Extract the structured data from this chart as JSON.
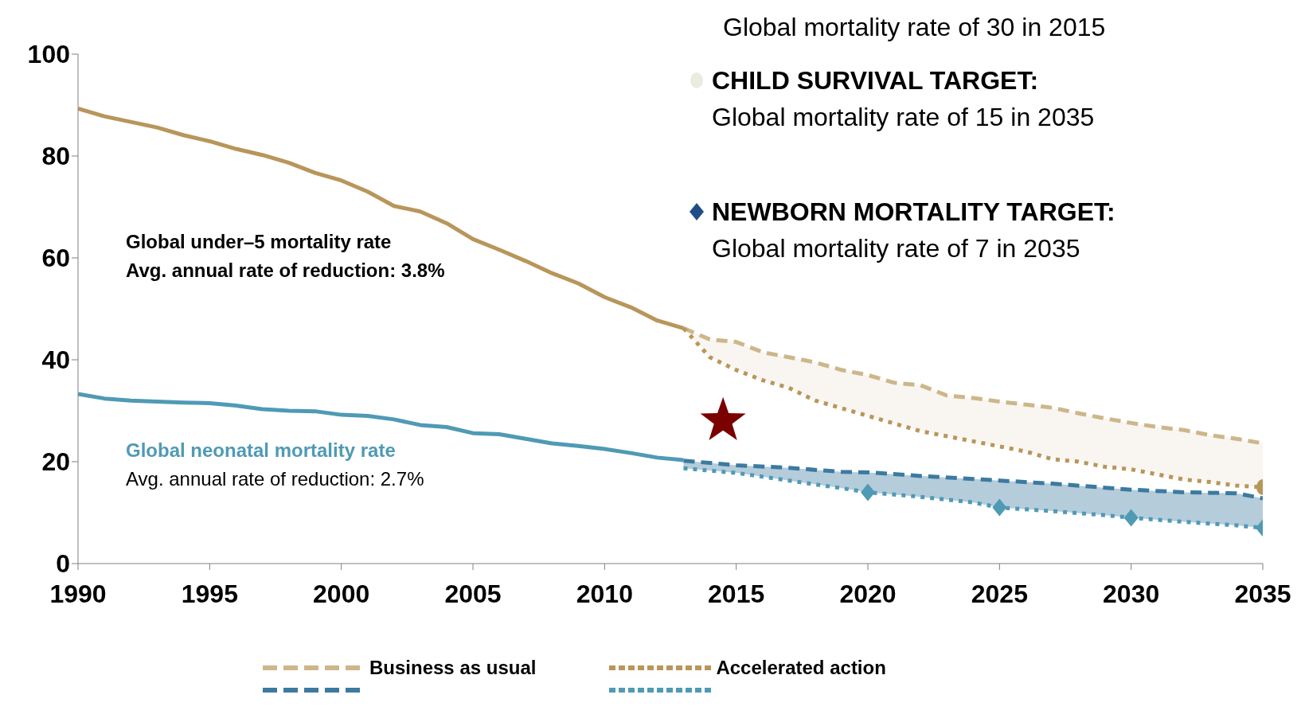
{
  "chart_data": {
    "type": "line",
    "xlim": [
      1990,
      2035
    ],
    "xticks": [
      1990,
      1995,
      2000,
      2005,
      2010,
      2015,
      2020,
      2025,
      2030,
      2035
    ],
    "ylim": [
      0,
      100
    ],
    "yticks": [
      0,
      20,
      40,
      60,
      80,
      100
    ],
    "grid": false,
    "legend": "bottom",
    "series": [
      {
        "name": "Global under–5 mortality rate",
        "color": "#b8965a",
        "line_style": "solid",
        "x": [
          1990,
          1991,
          1992,
          1993,
          1994,
          1995,
          1996,
          1997,
          1998,
          1999,
          2000,
          2001,
          2002,
          2003,
          2004,
          2005,
          2006,
          2007,
          2008,
          2009,
          2010,
          2011,
          2012,
          2013
        ],
        "values": [
          89.3,
          87.8,
          86.7,
          85.6,
          84.1,
          82.9,
          81.4,
          80.2,
          78.7,
          76.7,
          75.2,
          73.0,
          70.2,
          69.1,
          66.8,
          63.7,
          61.6,
          59.4,
          57.0,
          55.0,
          52.3,
          50.3,
          47.7,
          46.2
        ]
      },
      {
        "name": "Global neonatal mortality rate",
        "color": "#4f9ab5",
        "line_style": "solid",
        "x": [
          1990,
          1991,
          1992,
          1993,
          1994,
          1995,
          1996,
          1997,
          1998,
          1999,
          2000,
          2001,
          2002,
          2003,
          2004,
          2005,
          2006,
          2007,
          2008,
          2009,
          2010,
          2011,
          2012,
          2013
        ],
        "values": [
          33.3,
          32.4,
          32.0,
          31.8,
          31.6,
          31.5,
          31.0,
          30.3,
          30.0,
          29.9,
          29.2,
          29.0,
          28.3,
          27.2,
          26.8,
          25.6,
          25.4,
          24.5,
          23.6,
          23.1,
          22.5,
          21.7,
          20.8,
          20.3
        ]
      },
      {
        "name": "Business as usual",
        "color": "#cdb68a",
        "line_style": "dashed",
        "x": [
          2013,
          2014,
          2015,
          2016,
          2017,
          2018,
          2019,
          2020,
          2021,
          2022,
          2023,
          2024,
          2025,
          2026,
          2027,
          2028,
          2029,
          2030,
          2031,
          2032,
          2033,
          2034,
          2035
        ],
        "values": [
          46.2,
          44,
          43.5,
          41.5,
          40.5,
          39.5,
          38,
          37,
          35.5,
          35,
          33,
          32.5,
          31.8,
          31.2,
          30.6,
          29.5,
          28.5,
          27.6,
          26.8,
          26.2,
          25.2,
          24.5,
          23.6
        ],
        "upper": [
          46.2,
          44,
          43.5,
          41.5,
          40.5,
          39.5,
          38,
          37,
          35.5,
          35,
          33,
          32.5,
          31.8,
          31.2,
          30.6,
          29.5,
          28.5,
          27.6,
          26.8,
          26.2,
          25.2,
          24.5,
          23.6
        ],
        "lower": [
          46.2,
          40.5,
          38,
          36,
          34.5,
          32,
          30.5,
          29,
          27.5,
          26,
          25,
          24,
          23,
          22,
          20.5,
          20,
          19,
          18.5,
          17.5,
          16.5,
          16,
          15.3,
          15
        ]
      },
      {
        "name": "Accelerated action",
        "color": "#b8965a",
        "line_style": "dotted",
        "x": [
          2013,
          2014,
          2015,
          2016,
          2017,
          2018,
          2019,
          2020,
          2021,
          2022,
          2023,
          2024,
          2025,
          2026,
          2027,
          2028,
          2029,
          2030,
          2031,
          2032,
          2033,
          2034,
          2035
        ],
        "values": [
          46.2,
          40.5,
          38,
          36,
          34.5,
          32,
          30.5,
          29,
          27.5,
          26,
          25,
          24,
          23,
          22,
          20.5,
          20,
          19,
          18.5,
          17.5,
          16.5,
          16,
          15.3,
          15
        ]
      },
      {
        "color": "#3c7aa0",
        "line_style": "dashed",
        "x": [
          2013,
          2015,
          2017,
          2019,
          2020,
          2022,
          2024,
          2025,
          2027,
          2029,
          2030,
          2032,
          2034,
          2035
        ],
        "values": [
          20.2,
          19.3,
          18.8,
          18,
          17.9,
          17.2,
          16.6,
          16.3,
          15.7,
          14.9,
          14.5,
          14,
          13.8,
          12.8
        ],
        "upper": [
          20.2,
          19.3,
          18.8,
          18,
          17.9,
          17.2,
          16.6,
          16.3,
          15.7,
          14.9,
          14.5,
          14,
          13.8,
          12.8
        ],
        "lower": [
          18.7,
          17.8,
          16.3,
          14.8,
          14,
          13.1,
          12,
          11,
          10.3,
          9.5,
          9,
          8.2,
          7.5,
          7
        ]
      },
      {
        "color": "#4f9ab5",
        "line_style": "dotted",
        "x": [
          2013,
          2015,
          2017,
          2019,
          2020,
          2022,
          2024,
          2025,
          2027,
          2029,
          2030,
          2032,
          2034,
          2035
        ],
        "values": [
          18.7,
          17.8,
          16.3,
          14.8,
          14,
          13.1,
          12,
          11,
          10.3,
          9.5,
          9,
          8.2,
          7.5,
          7
        ]
      },
      {
        "type": "scatter",
        "color": "#7b0000",
        "marker": "star",
        "x": [
          2014.5
        ],
        "values": [
          28
        ]
      },
      {
        "type": "scatter",
        "color": "#b8965a",
        "marker": "circle",
        "x": [
          2035
        ],
        "values": [
          15
        ]
      },
      {
        "type": "scatter",
        "color": "#4f9ab5",
        "marker": "diamond",
        "x": [
          2020,
          2025,
          2030,
          2035
        ],
        "values": [
          14,
          11,
          9,
          7
        ]
      }
    ],
    "annotations": [
      "Avg. annual rate of reduction: 3.8%",
      "Avg. annual rate of reduction: 2.7%",
      "Global mortality rate of 30 in 2015",
      "CHILD SURVIVAL TARGET:",
      "Global mortality rate of 15 in 2035",
      "NEWBORN MORTALITY TARGET:",
      "Global mortality rate of 7 in 2035"
    ]
  }
}
